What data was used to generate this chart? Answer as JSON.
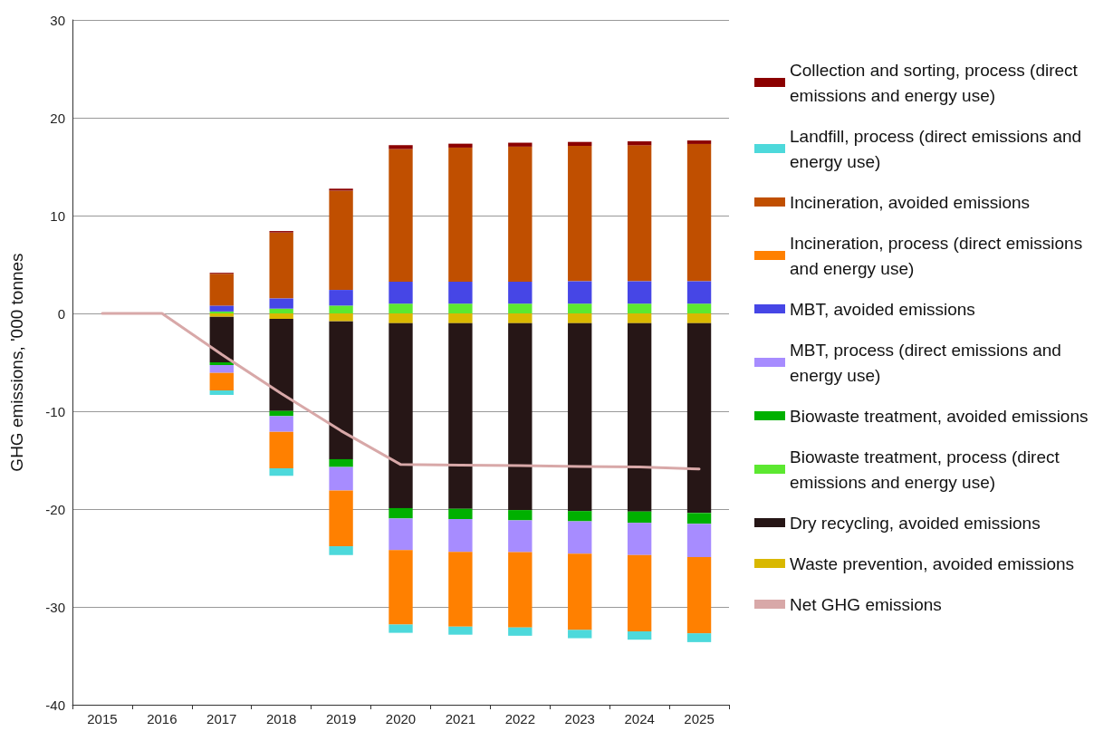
{
  "chart_data": {
    "type": "bar",
    "stacked": true,
    "ylabel": "GHG emissions, '000 tonnes",
    "categories": [
      "2015",
      "2016",
      "2017",
      "2018",
      "2019",
      "2020",
      "2021",
      "2022",
      "2023",
      "2024",
      "2025"
    ],
    "series": [
      {
        "name": "Waste prevention, avoided emissions",
        "color": "#d9b800",
        "values": [
          null,
          null,
          -0.34,
          -0.56,
          -0.8,
          -1.0,
          -1.0,
          -1.0,
          -1.0,
          -1.0,
          -1.0
        ]
      },
      {
        "name": "Dry recycling, avoided emissions",
        "color": "#261616",
        "values": [
          null,
          null,
          -4.66,
          -9.41,
          -14.1,
          -18.9,
          -18.97,
          -19.1,
          -19.2,
          -19.25,
          -19.4
        ]
      },
      {
        "name": "Biowaste treatment, process (direct emissions and energy use)",
        "color": "#5ce830",
        "values": [
          null,
          null,
          0.2,
          0.49,
          0.8,
          1.0,
          1.0,
          1.0,
          1.0,
          1.0,
          1.0
        ]
      },
      {
        "name": "Biowaste treatment, avoided emissions",
        "color": "#00b000",
        "values": [
          null,
          null,
          -0.28,
          -0.53,
          -0.8,
          -1.06,
          -1.05,
          -1.05,
          -1.05,
          -1.15,
          -1.1
        ]
      },
      {
        "name": "MBT, process (direct emissions and energy use)",
        "color": "#a78cff",
        "values": [
          null,
          null,
          -0.8,
          -1.6,
          -2.4,
          -3.24,
          -3.35,
          -3.25,
          -3.3,
          -3.3,
          -3.4
        ]
      },
      {
        "name": "MBT, avoided emissions",
        "color": "#4646e6",
        "values": [
          null,
          null,
          0.6,
          1.05,
          1.6,
          2.25,
          2.25,
          2.25,
          2.3,
          2.3,
          2.3
        ]
      },
      {
        "name": "Incineration, process (direct emissions and energy use)",
        "color": "#ff8000",
        "values": [
          null,
          null,
          -1.79,
          -3.73,
          -5.7,
          -7.6,
          -7.65,
          -7.7,
          -7.8,
          -7.8,
          -7.8
        ]
      },
      {
        "name": "Incineration, avoided emissions",
        "color": "#c04f00",
        "values": [
          null,
          null,
          3.25,
          6.73,
          10.15,
          13.55,
          13.7,
          13.8,
          13.83,
          13.89,
          14.02
        ]
      },
      {
        "name": "Landfill, process (direct emissions and energy use)",
        "color": "#4dd9db",
        "values": [
          null,
          null,
          -0.46,
          -0.77,
          -0.9,
          -0.85,
          -0.82,
          -0.85,
          -0.85,
          -0.85,
          -0.9
        ]
      },
      {
        "name": "Collection and sorting, process (direct emissions and energy use)",
        "color": "#8b0000",
        "values": [
          null,
          null,
          0.1,
          0.15,
          0.2,
          0.4,
          0.4,
          0.4,
          0.4,
          0.4,
          0.36
        ]
      },
      {
        "name": "Net GHG emissions",
        "type": "line",
        "color": "#d8a8a8",
        "values": [
          0,
          0,
          -4.2,
          -8.2,
          -12.0,
          -15.45,
          -15.5,
          -15.55,
          -15.65,
          -15.7,
          -15.9
        ]
      }
    ],
    "ylim": [
      -40,
      30
    ],
    "yticks": [
      -40,
      -30,
      -20,
      -10,
      0,
      10,
      20,
      30
    ],
    "grid": "y",
    "legend": "right",
    "marker": "none"
  }
}
